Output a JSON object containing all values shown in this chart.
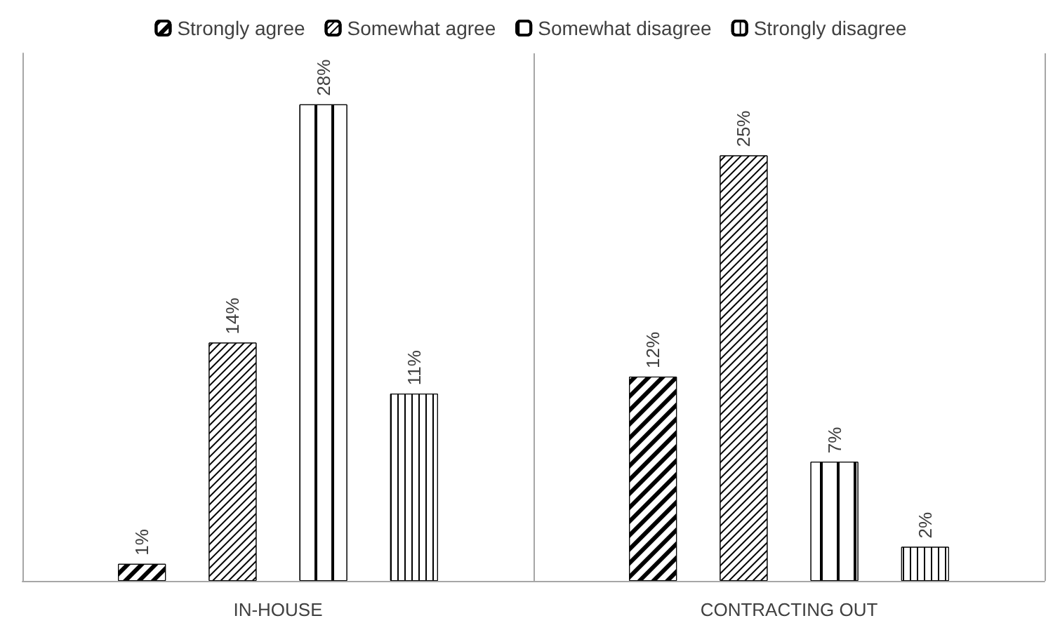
{
  "chart_data": {
    "type": "bar",
    "categories": [
      "IN-HOUSE",
      "CONTRACTING OUT"
    ],
    "series": [
      {
        "name": "Strongly agree",
        "color": "#000000",
        "values": [
          1,
          12
        ],
        "value_labels": [
          "1%",
          "12%"
        ]
      },
      {
        "name": "Somewhat agree",
        "color": "#000000",
        "values": [
          14,
          25
        ],
        "value_labels": [
          "14%",
          "25%"
        ]
      },
      {
        "name": "Somewhat disagree",
        "color": "#000000",
        "values": [
          28,
          7
        ],
        "value_labels": [
          "28%",
          "7%"
        ]
      },
      {
        "name": "Strongly disagree",
        "color": "#000000",
        "values": [
          11,
          2
        ],
        "value_labels": [
          "11%",
          "2%"
        ]
      }
    ],
    "legend": "top",
    "grid": false
  }
}
